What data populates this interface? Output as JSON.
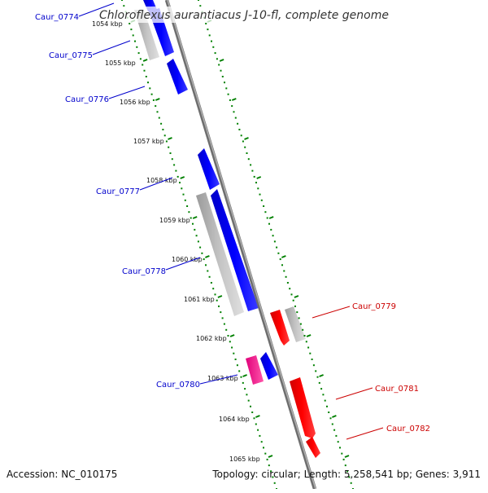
{
  "title": "Chloroflexus aurantiacus J-10-fl, complete genome",
  "footer": {
    "accession": "Accession: NC_010175",
    "summary": "Topology: circular; Length: 5,258,541 bp; Genes: 3,911"
  },
  "colors": {
    "forward": "#0000ff",
    "reverse": "#ff0000",
    "gray": "#b8b8b8",
    "pink": "#ff3399",
    "backbone": "#888888",
    "dots": "#008000",
    "label_left": "#0000cc",
    "label_right": "#cc0000"
  },
  "tick_labels": [
    "1054 kbp",
    "1055 kbp",
    "1056 kbp",
    "1057 kbp",
    "1058 kbp",
    "1059 kbp",
    "1060 kbp",
    "1061 kbp",
    "1062 kbp",
    "1063 kbp",
    "1064 kbp",
    "1065 kbp"
  ],
  "gene_labels_left": [
    "Caur_0774",
    "Caur_0775",
    "Caur_0776",
    "Caur_0777",
    "Caur_0778",
    "Caur_0780"
  ],
  "gene_labels_right": [
    "Caur_0779",
    "Caur_0781",
    "Caur_0782"
  ]
}
